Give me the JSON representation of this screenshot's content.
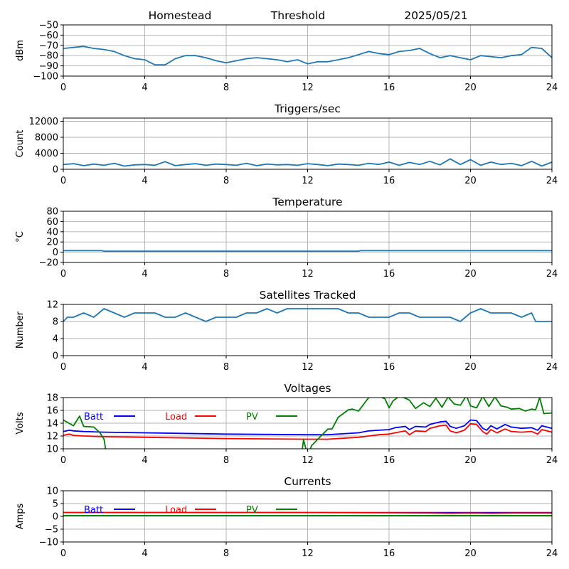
{
  "header": {
    "left": "Homestead",
    "center": "Threshold",
    "right": "2025/05/21"
  },
  "colors": {
    "default": "#1f77b4",
    "batt": "#0000ff",
    "load": "#ff0000",
    "pv": "#008000"
  },
  "chart_data": [
    {
      "type": "line",
      "title": "",
      "ylabel": "dBm",
      "xlim": [
        0,
        24
      ],
      "xticks": [
        0,
        4,
        8,
        12,
        16,
        20,
        24
      ],
      "ylim": [
        -100,
        -50
      ],
      "yticks": [
        -100,
        -90,
        -80,
        -70,
        -60,
        -50
      ],
      "grid": true,
      "series": [
        {
          "color": "#1f77b4",
          "x": [
            0,
            0.5,
            1,
            1.5,
            2,
            2.5,
            3,
            3.5,
            4,
            4.5,
            5,
            5.5,
            6,
            6.5,
            7,
            7.5,
            8,
            8.5,
            9,
            9.5,
            10,
            10.5,
            11,
            11.5,
            12,
            12.5,
            13,
            13.5,
            14,
            14.5,
            15,
            15.5,
            16,
            16.5,
            17,
            17.5,
            18,
            18.5,
            19,
            19.5,
            20,
            20.5,
            21,
            21.5,
            22,
            22.5,
            23,
            23.5,
            24
          ],
          "y": [
            -73,
            -72,
            -71,
            -73,
            -74,
            -76,
            -80,
            -83,
            -84,
            -89,
            -89,
            -83,
            -80,
            -80,
            -82,
            -85,
            -87,
            -85,
            -83,
            -82,
            -83,
            -84,
            -86,
            -84,
            -88,
            -86,
            -86,
            -84,
            -82,
            -79,
            -76,
            -78,
            -79,
            -76,
            -75,
            -73,
            -78,
            -82,
            -80,
            -82,
            -84,
            -80,
            -81,
            -82,
            -80,
            -79,
            -72,
            -73,
            -82
          ]
        }
      ]
    },
    {
      "type": "line",
      "title": "Triggers/sec",
      "ylabel": "Count",
      "xlim": [
        0,
        24
      ],
      "xticks": [
        0,
        4,
        8,
        12,
        16,
        20,
        24
      ],
      "ylim": [
        0,
        12800
      ],
      "yticks": [
        0,
        4000,
        8000,
        12000
      ],
      "grid": true,
      "series": [
        {
          "color": "#1f77b4",
          "x": [
            0,
            0.5,
            1,
            1.5,
            2,
            2.5,
            3,
            3.5,
            4,
            4.5,
            5,
            5.5,
            6,
            6.5,
            7,
            7.5,
            8,
            8.5,
            9,
            9.5,
            10,
            10.5,
            11,
            11.5,
            12,
            12.5,
            13,
            13.5,
            14,
            14.5,
            15,
            15.5,
            16,
            16.5,
            17,
            17.5,
            18,
            18.5,
            19,
            19.5,
            20,
            20.5,
            21,
            21.5,
            22,
            22.5,
            23,
            23.5,
            24
          ],
          "y": [
            1200,
            1400,
            900,
            1300,
            1000,
            1500,
            800,
            1100,
            1200,
            1000,
            1900,
            900,
            1200,
            1400,
            1000,
            1300,
            1200,
            1000,
            1500,
            900,
            1300,
            1100,
            1200,
            1000,
            1400,
            1200,
            900,
            1300,
            1200,
            1000,
            1500,
            1200,
            1800,
            1000,
            1700,
            1200,
            2000,
            1100,
            2600,
            1200,
            2400,
            1000,
            1800,
            1200,
            1500,
            900,
            2000,
            800,
            1800
          ]
        }
      ]
    },
    {
      "type": "line",
      "title": "Temperature",
      "ylabel": "°C",
      "xlim": [
        0,
        24
      ],
      "xticks": [
        0,
        4,
        8,
        12,
        16,
        20,
        24
      ],
      "ylim": [
        -20,
        80
      ],
      "yticks": [
        -20,
        0,
        20,
        40,
        60,
        80
      ],
      "grid": true,
      "series": [
        {
          "color": "#1f77b4",
          "x": [
            0,
            1,
            1.9,
            2,
            4,
            8,
            12,
            14.5,
            14.6,
            16,
            20,
            24
          ],
          "y": [
            3,
            3,
            3,
            2,
            2,
            2,
            2,
            2,
            3,
            3,
            3,
            3
          ]
        }
      ]
    },
    {
      "type": "line",
      "title": "Satellites Tracked",
      "ylabel": "Number",
      "xlim": [
        0,
        24
      ],
      "xticks": [
        0,
        4,
        8,
        12,
        16,
        20,
        24
      ],
      "ylim": [
        0,
        12
      ],
      "yticks": [
        0,
        4,
        8,
        12
      ],
      "grid": true,
      "series": [
        {
          "color": "#1f77b4",
          "x": [
            0,
            0.2,
            0.5,
            1,
            1.5,
            2,
            2.5,
            3,
            3.5,
            4,
            4.5,
            5,
            5.5,
            6,
            6.5,
            7,
            7.5,
            8,
            8.5,
            9,
            9.5,
            10,
            10.5,
            11,
            11.5,
            12,
            12.5,
            13,
            13.5,
            14,
            14.5,
            15,
            15.5,
            16,
            16.5,
            17,
            17.5,
            18,
            18.5,
            19,
            19.5,
            20,
            20.5,
            21,
            21.5,
            22,
            22.5,
            23,
            23.2,
            23.5,
            24
          ],
          "y": [
            8,
            9,
            9,
            10,
            9,
            11,
            10,
            9,
            10,
            10,
            10,
            9,
            9,
            10,
            9,
            8,
            9,
            9,
            9,
            10,
            10,
            11,
            10,
            11,
            11,
            11,
            11,
            11,
            11,
            10,
            10,
            9,
            9,
            9,
            10,
            10,
            9,
            9,
            9,
            9,
            8,
            10,
            11,
            10,
            10,
            10,
            9,
            10,
            8,
            8,
            8
          ]
        }
      ]
    },
    {
      "type": "line",
      "title": "Voltages",
      "ylabel": "Volts",
      "xlim": [
        0,
        24
      ],
      "xticks": [
        0,
        4,
        8,
        12,
        16,
        20,
        24
      ],
      "ylim": [
        10,
        18
      ],
      "yticks": [
        10,
        12,
        14,
        16,
        18
      ],
      "grid": true,
      "legend": {
        "placement": "upper-left",
        "entries": [
          {
            "label": "Batt",
            "color": "#0000ff"
          },
          {
            "label": "Load",
            "color": "#ff0000"
          },
          {
            "label": "PV",
            "color": "#008000"
          }
        ]
      },
      "series": [
        {
          "name": "Batt",
          "color": "#0000ff",
          "x": [
            0,
            0.3,
            0.5,
            1,
            2,
            4,
            8,
            12,
            13,
            14,
            14.5,
            15,
            15.5,
            16,
            16.3,
            16.8,
            17,
            17.3,
            17.8,
            18,
            18.5,
            18.8,
            19,
            19.3,
            19.7,
            20,
            20.3,
            20.6,
            20.8,
            21,
            21.3,
            21.7,
            22,
            22.5,
            23,
            23.3,
            23.5,
            24
          ],
          "y": [
            12.7,
            12.9,
            12.8,
            12.7,
            12.6,
            12.5,
            12.3,
            12.2,
            12.2,
            12.4,
            12.5,
            12.8,
            12.9,
            13.0,
            13.3,
            13.5,
            13.0,
            13.5,
            13.4,
            13.8,
            14.2,
            14.3,
            13.5,
            13.2,
            13.6,
            14.5,
            14.4,
            13.2,
            12.9,
            13.6,
            13.1,
            13.8,
            13.4,
            13.2,
            13.3,
            12.9,
            13.6,
            13.2
          ]
        },
        {
          "name": "Load",
          "color": "#ff0000",
          "x": [
            0,
            0.3,
            0.5,
            1,
            2,
            4,
            8,
            12,
            13,
            14,
            14.5,
            15,
            15.5,
            16,
            16.3,
            16.8,
            17,
            17.3,
            17.8,
            18,
            18.5,
            18.8,
            19,
            19.3,
            19.7,
            20,
            20.3,
            20.6,
            20.8,
            21,
            21.3,
            21.7,
            22,
            22.5,
            23,
            23.3,
            23.5,
            24
          ],
          "y": [
            12.1,
            12.3,
            12.1,
            12.0,
            11.9,
            11.8,
            11.6,
            11.5,
            11.5,
            11.7,
            11.8,
            12.0,
            12.2,
            12.3,
            12.5,
            12.8,
            12.2,
            12.8,
            12.7,
            13.2,
            13.6,
            13.7,
            12.8,
            12.5,
            12.9,
            13.9,
            13.8,
            12.7,
            12.3,
            13.0,
            12.5,
            13.1,
            12.7,
            12.6,
            12.7,
            12.3,
            13.0,
            12.6
          ]
        },
        {
          "name": "PV",
          "color": "#008000",
          "x": [
            0,
            0.5,
            0.8,
            1,
            1.5,
            1.8,
            2,
            2.1,
            2.3,
            11.7,
            11.8,
            12,
            12.2,
            12.5,
            13,
            13.2,
            13.5,
            14,
            14.2,
            14.5,
            15,
            15.5,
            15.8,
            16,
            16.2,
            16.5,
            16.8,
            17,
            17.3,
            17.7,
            18,
            18.3,
            18.6,
            18.9,
            19.2,
            19.5,
            19.8,
            20,
            20.3,
            20.6,
            20.9,
            21.2,
            21.5,
            21.8,
            22,
            22.4,
            22.7,
            23,
            23.2,
            23.4,
            23.6,
            24
          ],
          "y": [
            14.5,
            13.6,
            15.1,
            13.5,
            13.4,
            12.5,
            11.5,
            9.5,
            9.0,
            9.0,
            11.4,
            9.0,
            10.5,
            11.5,
            13.1,
            13.1,
            14.9,
            16.1,
            16.2,
            15.9,
            18.0,
            18.2,
            17.8,
            16.4,
            17.5,
            18.2,
            17.9,
            17.6,
            16.3,
            17.2,
            16.6,
            17.9,
            16.5,
            18.1,
            17.0,
            16.8,
            18.3,
            16.7,
            16.4,
            18.2,
            16.6,
            18.1,
            16.7,
            16.5,
            16.2,
            16.3,
            15.9,
            16.2,
            16.1,
            18.0,
            15.5,
            15.6
          ]
        }
      ]
    },
    {
      "type": "line",
      "title": "Currents",
      "ylabel": "Amps",
      "xlim": [
        0,
        24
      ],
      "xticks": [
        0,
        4,
        8,
        12,
        16,
        20,
        24
      ],
      "ylim": [
        -10,
        10
      ],
      "yticks": [
        -10,
        -5,
        0,
        5,
        10
      ],
      "grid": true,
      "legend": {
        "placement": "upper-left",
        "entries": [
          {
            "label": "Batt",
            "color": "#0000ff"
          },
          {
            "label": "Load",
            "color": "#ff0000"
          },
          {
            "label": "PV",
            "color": "#008000"
          }
        ]
      },
      "series": [
        {
          "name": "Batt",
          "color": "#0000ff",
          "x": [
            0,
            24
          ],
          "y": [
            1.5,
            1.5
          ]
        },
        {
          "name": "Load",
          "color": "#ff0000",
          "x": [
            0,
            4,
            8,
            12,
            16,
            18,
            19,
            20,
            21,
            22,
            23,
            24
          ],
          "y": [
            1.5,
            1.5,
            1.5,
            1.5,
            1.4,
            1.3,
            1.2,
            1.3,
            1.2,
            1.3,
            1.3,
            1.3
          ]
        },
        {
          "name": "PV",
          "color": "#008000",
          "x": [
            0,
            24
          ],
          "y": [
            0.3,
            0.3
          ]
        }
      ]
    }
  ]
}
